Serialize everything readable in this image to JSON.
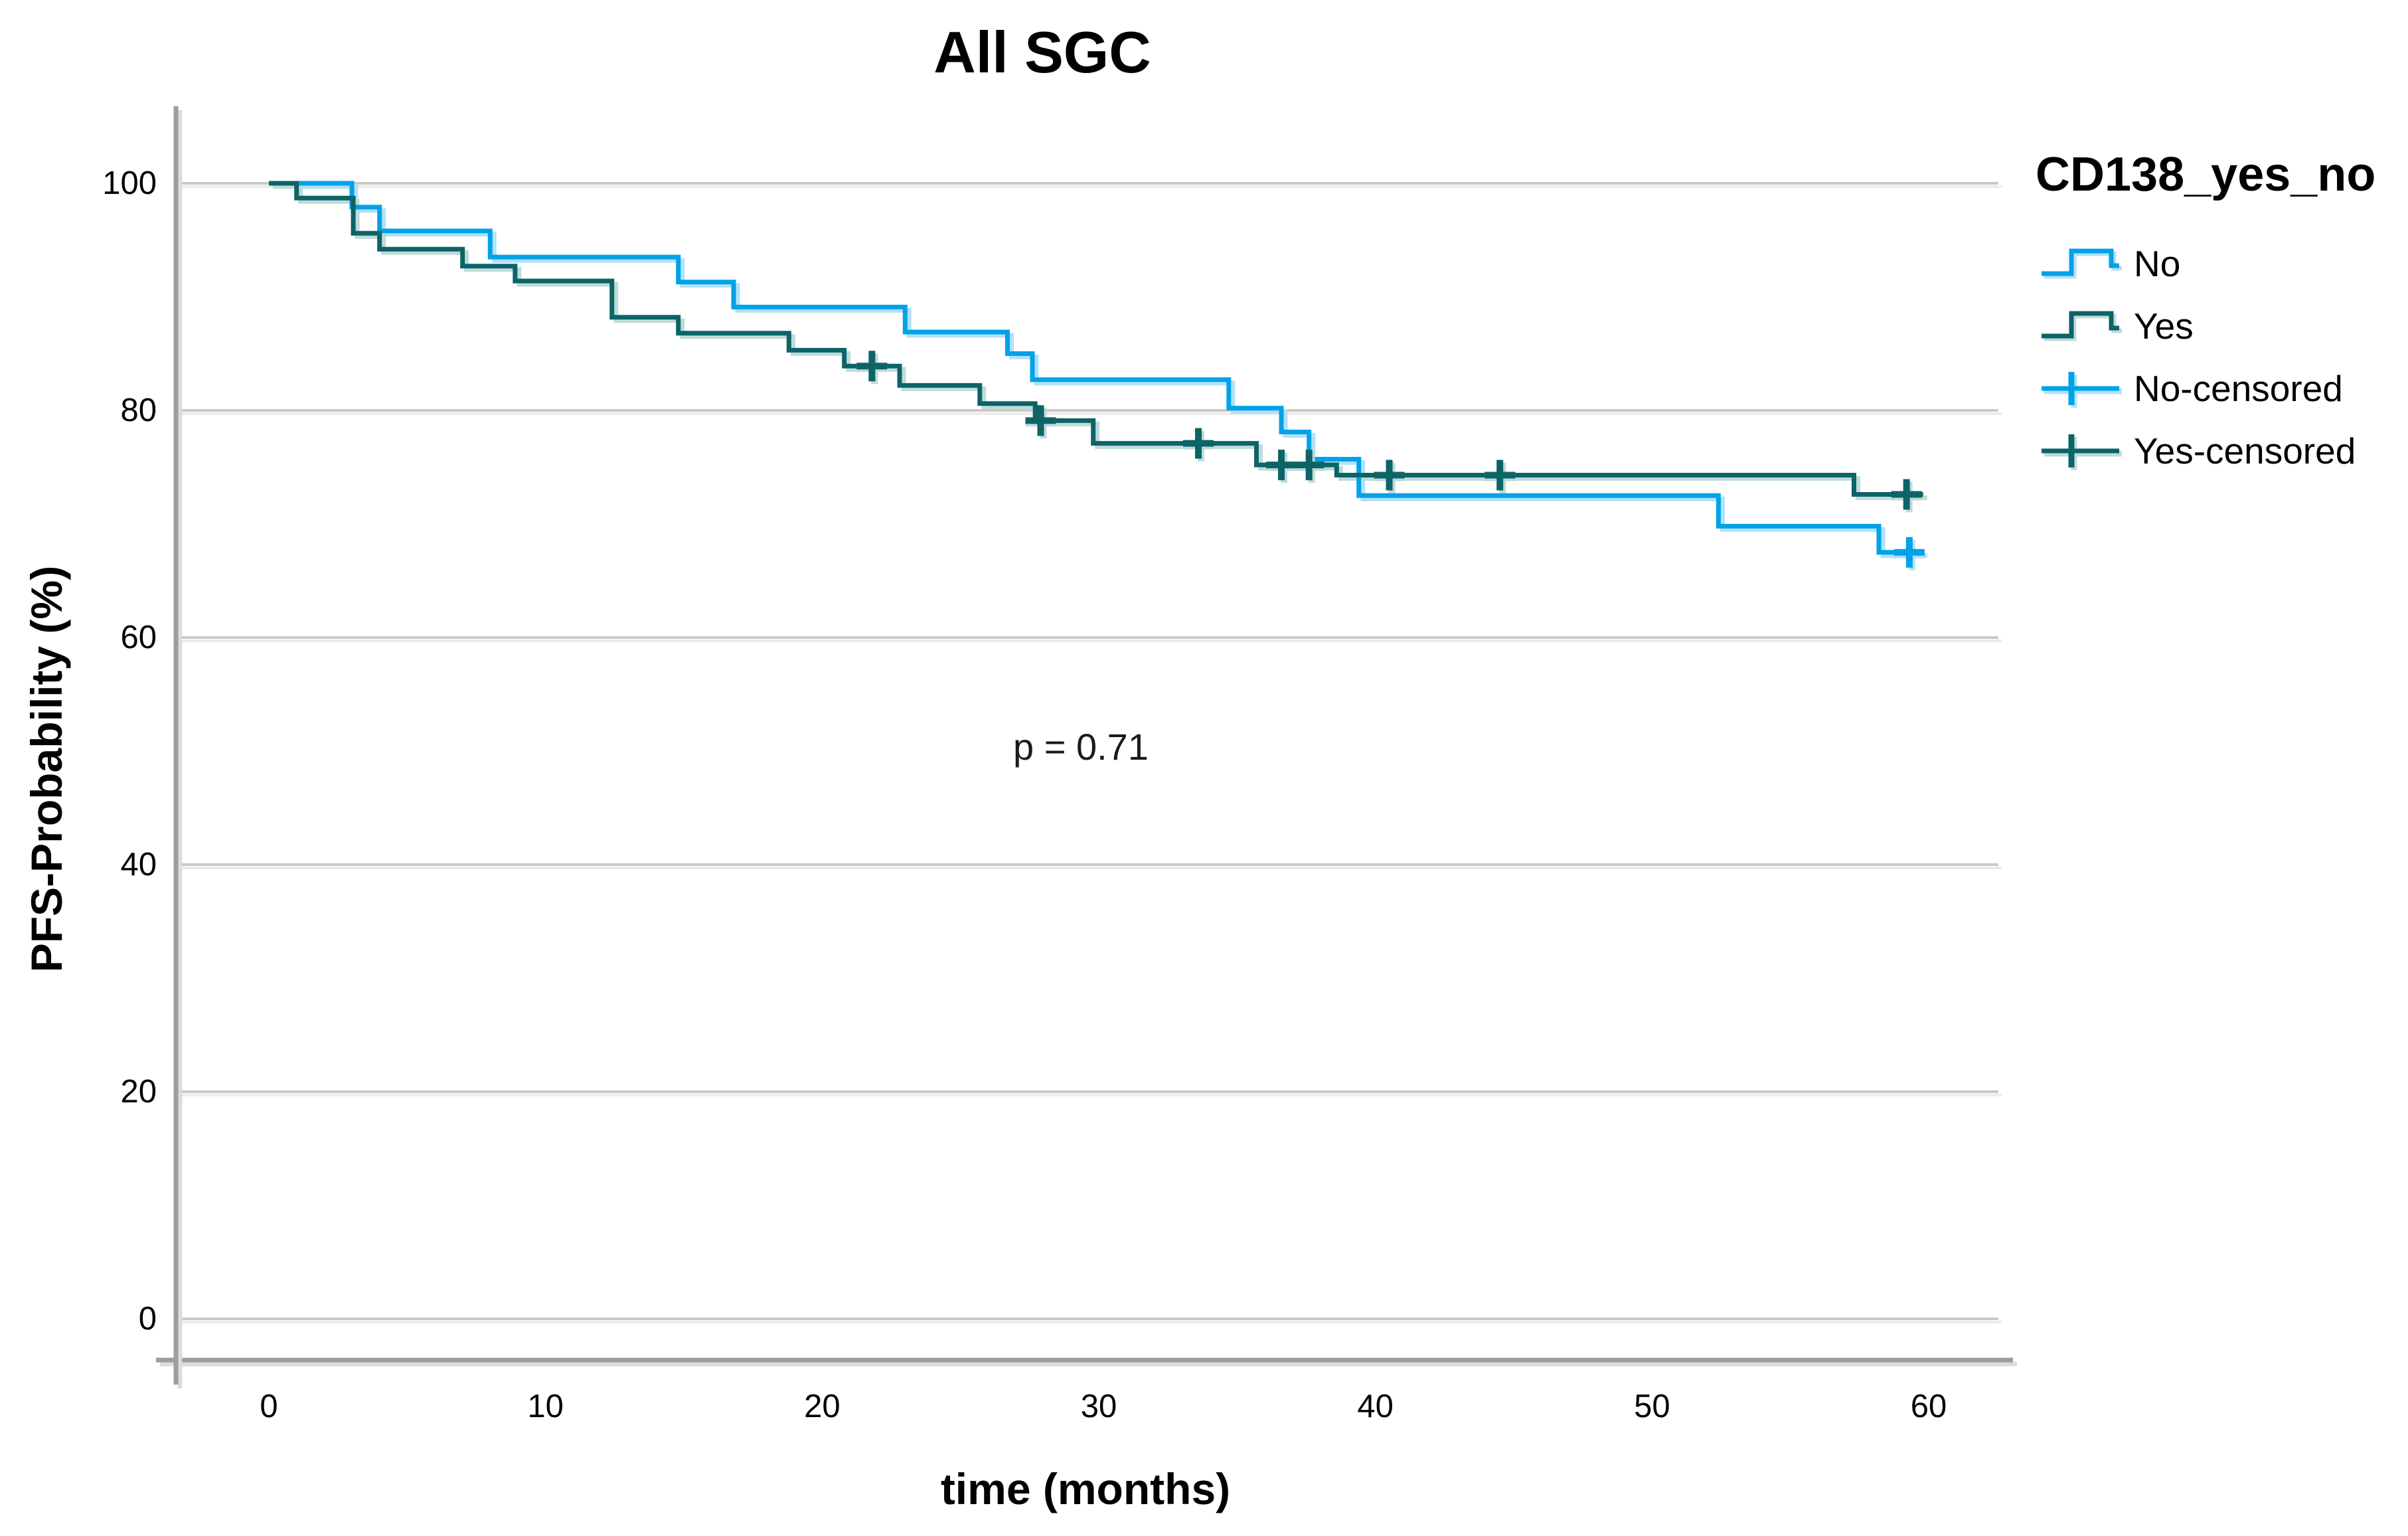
{
  "title": "All SGC",
  "annotation": {
    "text": "p = 0.71"
  },
  "axes": {
    "x_label": "time (months)",
    "y_label": "PFS-Probability (%)",
    "x_ticks": [
      0,
      10,
      20,
      30,
      40,
      50,
      60
    ],
    "y_ticks": [
      0,
      20,
      40,
      60,
      80,
      100
    ]
  },
  "legend": {
    "title": "CD138_yes_no",
    "entries": [
      {
        "label": "No",
        "symbol": "step-line",
        "color": "#00A2E8",
        "halo_color": "#AEDFF8"
      },
      {
        "label": "Yes",
        "symbol": "step-line",
        "color": "#0C6467",
        "halo_color": "#BCD9D8"
      },
      {
        "label": "No-censored",
        "symbol": "censor-cross",
        "color": "#00A2E8",
        "halo_color": "#AEDFF8"
      },
      {
        "label": "Yes-censored",
        "symbol": "censor-cross",
        "color": "#0C6467",
        "halo_color": "#BCD9D8"
      }
    ]
  },
  "chart_data": {
    "type": "line",
    "subtype": "kaplan-meier-step",
    "title": "All SGC",
    "xlabel": "time (months)",
    "ylabel": "PFS-Probability (%)",
    "xlim": [
      0,
      62.5
    ],
    "ylim": [
      0,
      100
    ],
    "x_ticks": [
      0,
      10,
      20,
      30,
      40,
      50,
      60
    ],
    "y_ticks": [
      0,
      20,
      40,
      60,
      80,
      100
    ],
    "grid": "horizontal",
    "legend_position": "right",
    "annotation": {
      "text": "p = 0.71",
      "x_months": 29.4,
      "y_percent": 50
    },
    "series": [
      {
        "name": "No",
        "color": "#00A2E8",
        "halo_color": "#AEDFF8",
        "steps": [
          [
            0,
            100
          ],
          [
            3.0,
            97.9
          ],
          [
            4.0,
            95.8
          ],
          [
            8.0,
            93.5
          ],
          [
            14.8,
            91.3
          ],
          [
            16.8,
            89.1
          ],
          [
            23.0,
            86.9
          ],
          [
            26.7,
            85.0
          ],
          [
            27.6,
            82.7
          ],
          [
            34.7,
            80.2
          ],
          [
            36.6,
            78.1
          ],
          [
            37.6,
            75.7
          ],
          [
            39.4,
            72.5
          ],
          [
            52.4,
            69.8
          ],
          [
            58.2,
            67.5
          ]
        ],
        "end_time": 59.8,
        "censored": [
          [
            59.3,
            67.5
          ]
        ]
      },
      {
        "name": "Yes",
        "color": "#0C6467",
        "halo_color": "#BCD9D8",
        "steps": [
          [
            0,
            100
          ],
          [
            1.0,
            98.7
          ],
          [
            3.05,
            95.6
          ],
          [
            4.0,
            94.2
          ],
          [
            7.0,
            92.7
          ],
          [
            8.9,
            91.4
          ],
          [
            12.4,
            88.2
          ],
          [
            14.8,
            86.8
          ],
          [
            18.8,
            85.3
          ],
          [
            20.8,
            83.9
          ],
          [
            22.8,
            82.2
          ],
          [
            25.7,
            80.6
          ],
          [
            27.7,
            79.1
          ],
          [
            29.8,
            77.1
          ],
          [
            35.7,
            75.2
          ],
          [
            38.6,
            74.3
          ],
          [
            57.3,
            72.6
          ]
        ],
        "end_time": 59.8,
        "censored": [
          [
            21.8,
            83.9
          ],
          [
            27.9,
            79.1
          ],
          [
            33.6,
            77.1
          ],
          [
            36.6,
            75.2
          ],
          [
            37.6,
            75.2
          ],
          [
            40.5,
            74.3
          ],
          [
            44.5,
            74.3
          ],
          [
            59.2,
            72.6
          ]
        ]
      }
    ]
  }
}
